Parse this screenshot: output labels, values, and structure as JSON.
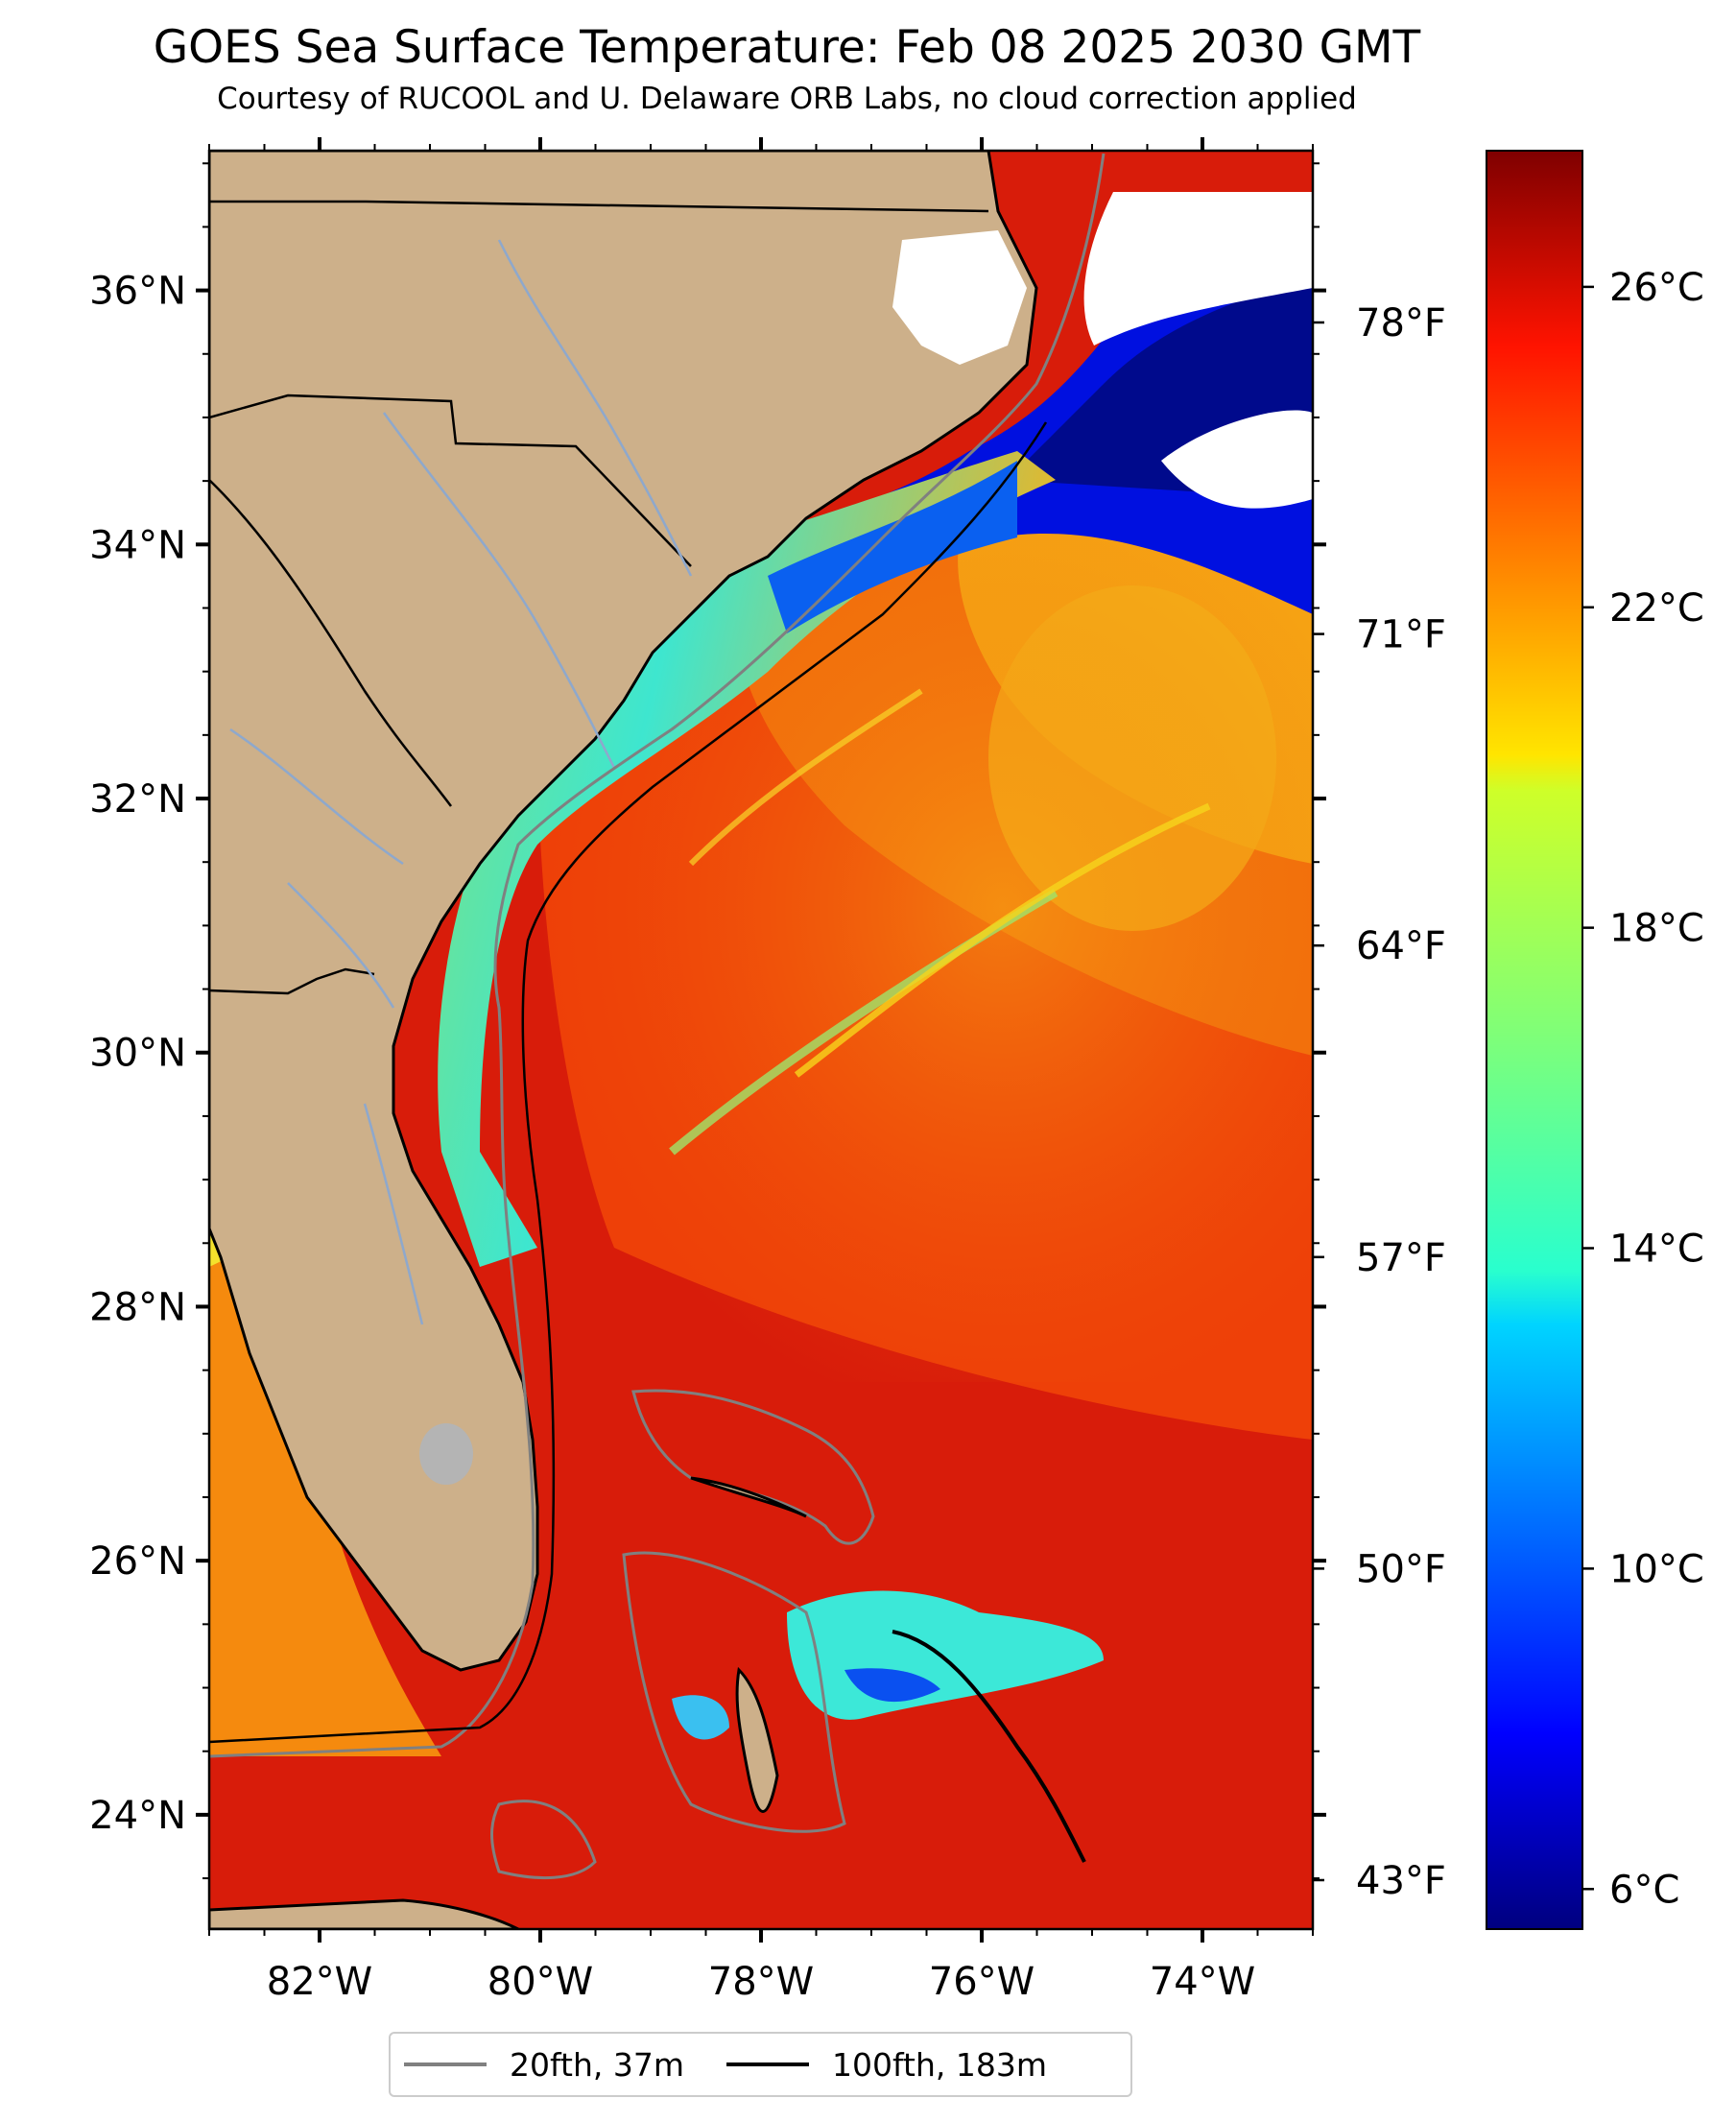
{
  "title": "GOES Sea Surface Temperature: Feb 08 2025 2030 GMT",
  "subtitle": "Courtesy of RUCOOL and U. Delaware ORB Labs, no cloud correction applied",
  "map": {
    "lon_range": [
      -83.0,
      -73.0
    ],
    "lat_range": [
      23.1,
      37.1
    ],
    "lat_ticks": [
      {
        "lat": 36,
        "label": "36°N"
      },
      {
        "lat": 34,
        "label": "34°N"
      },
      {
        "lat": 32,
        "label": "32°N"
      },
      {
        "lat": 30,
        "label": "30°N"
      },
      {
        "lat": 28,
        "label": "28°N"
      },
      {
        "lat": 26,
        "label": "26°N"
      },
      {
        "lat": 24,
        "label": "24°N"
      }
    ],
    "lon_ticks": [
      {
        "lon": -82,
        "label": "82°W"
      },
      {
        "lon": -80,
        "label": "80°W"
      },
      {
        "lon": -78,
        "label": "78°W"
      },
      {
        "lon": -76,
        "label": "76°W"
      },
      {
        "lon": -74,
        "label": "74°W"
      }
    ],
    "fahrenheit_ticks": [
      {
        "f": 78,
        "label": "78°F"
      },
      {
        "f": 71,
        "label": "71°F"
      },
      {
        "f": 64,
        "label": "64°F"
      },
      {
        "f": 57,
        "label": "57°F"
      },
      {
        "f": 50,
        "label": "50°F"
      },
      {
        "f": 43,
        "label": "43°F"
      }
    ]
  },
  "colorbar": {
    "vmin_c": 5.5,
    "vmax_c": 27.7,
    "ticks": [
      {
        "c": 26,
        "label": "26°C"
      },
      {
        "c": 22,
        "label": "22°C"
      },
      {
        "c": 18,
        "label": "18°C"
      },
      {
        "c": 14,
        "label": "14°C"
      },
      {
        "c": 10,
        "label": "10°C"
      },
      {
        "c": 6,
        "label": "6°C"
      }
    ]
  },
  "legend": [
    {
      "label": "20fth, 37m",
      "color": "#808080"
    },
    {
      "label": "100fth, 183m",
      "color": "#000000"
    }
  ],
  "colors": {
    "land": "#cdb08a",
    "ocean_warm": "#d81c0a",
    "ocean_mid": "#f04a08",
    "ocean_orange": "#f4880e",
    "shelf_yellow": "#f3d21e",
    "shelf_green": "#8fe070",
    "shelf_cyan": "#3be8d6",
    "cold_blue": "#0a4ee8",
    "deep_navy": "#000a8c",
    "rivers": "#8ea8cc"
  }
}
